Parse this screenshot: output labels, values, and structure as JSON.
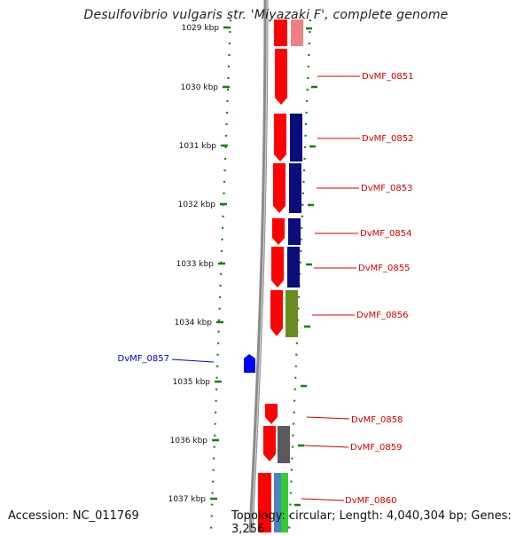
{
  "title": "Desulfovibrio vulgaris str. 'Miyazaki F', complete genome",
  "accession_text": "Accession: NC_011769",
  "topology_text": "Topology: circular; Length: 4,040,304 bp; Genes: 3,256",
  "colors": {
    "backbone": "#8a8a8a",
    "tick": "#1a7a1a",
    "gene_forward": "#ff0000",
    "gene_reverse": "#0000ff",
    "label_forward": "#cc0000",
    "label_reverse": "#0000cc",
    "navy": "#0c0c7a",
    "olive": "#6b8a1e",
    "gray": "#5a5a5a",
    "green": "#33cc33",
    "steel": "#4a84c2",
    "pink": "#f08080"
  },
  "ticks": [
    "1029 kbp",
    "1030 kbp",
    "1031 kbp",
    "1032 kbp",
    "1033 kbp",
    "1034 kbp",
    "1035 kbp",
    "1036 kbp",
    "1037 kbp"
  ],
  "gene_labels": [
    {
      "text": "DvMF_0851",
      "side": "right"
    },
    {
      "text": "DvMF_0852",
      "side": "right"
    },
    {
      "text": "DvMF_0853",
      "side": "right"
    },
    {
      "text": "DvMF_0854",
      "side": "right"
    },
    {
      "text": "DvMF_0855",
      "side": "right"
    },
    {
      "text": "DvMF_0856",
      "side": "right"
    },
    {
      "text": "DvMF_0857",
      "side": "left"
    },
    {
      "text": "DvMF_0858",
      "side": "right"
    },
    {
      "text": "DvMF_0859",
      "side": "right"
    },
    {
      "text": "DvMF_0860",
      "side": "right"
    }
  ]
}
